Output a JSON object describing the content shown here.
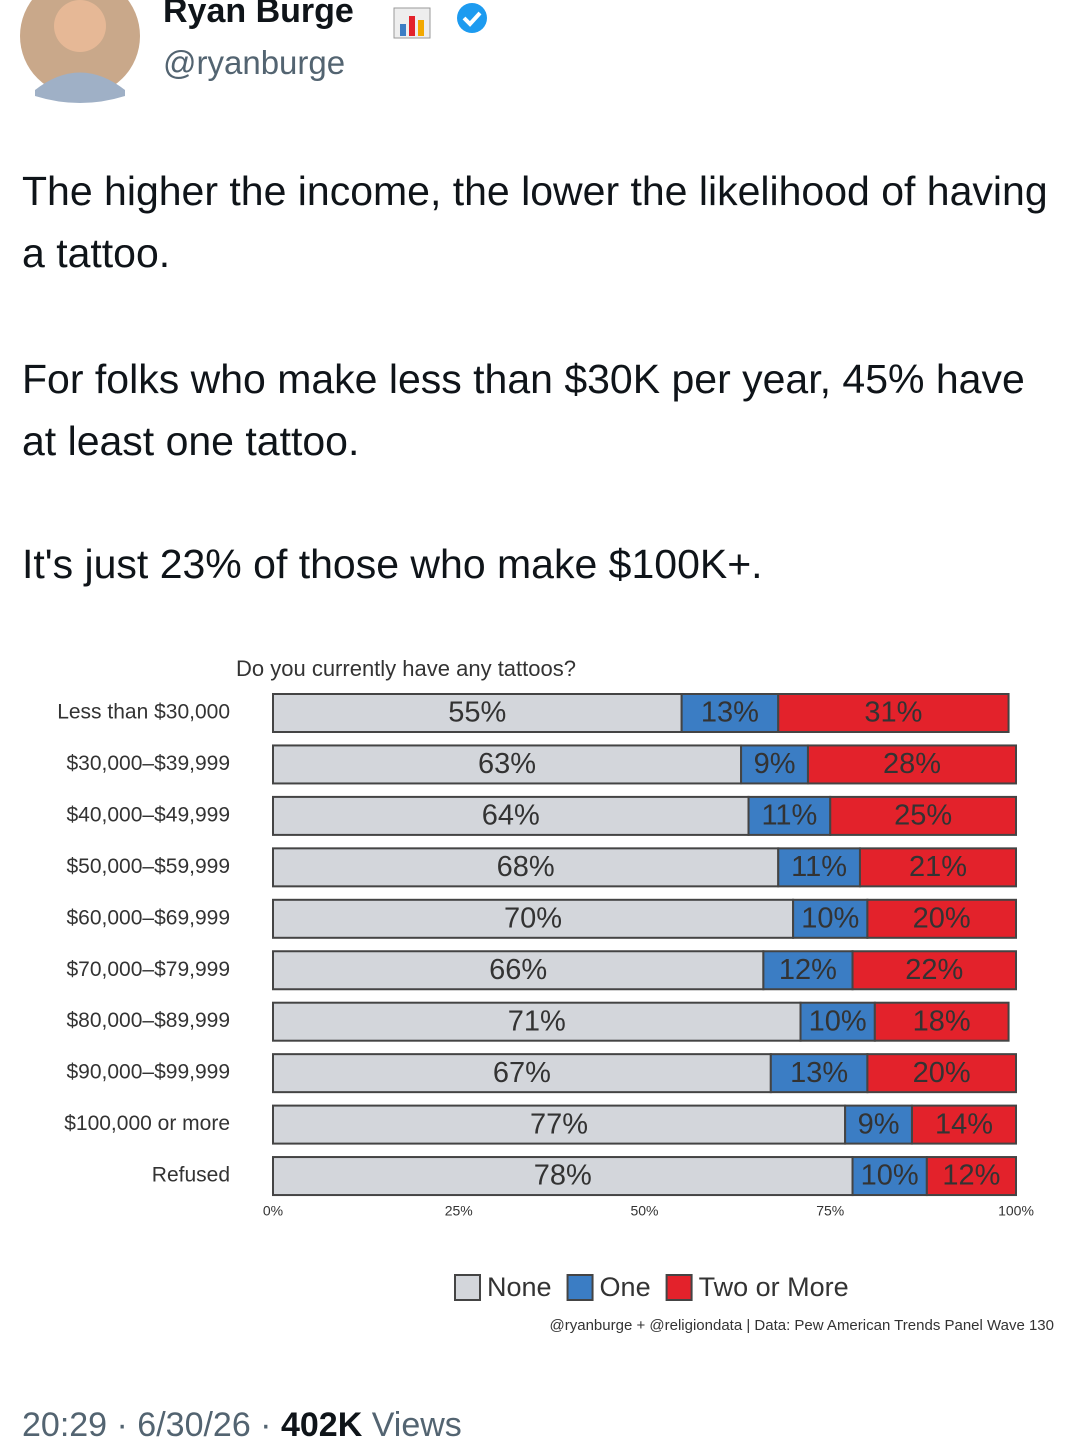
{
  "tweet": {
    "name": "Ryan Burge",
    "handle": "@ryanburge",
    "paragraphs": [
      "The higher the income, the lower the likelihood of having a tattoo.",
      "For folks who make less than $30K per year, 45% have at least one tattoo.",
      "It's just 23% of those who make $100K+."
    ],
    "meta": "20:29 · 6/30/26 ·",
    "views_count": "402K",
    "views_label": "Views"
  },
  "chart_data": {
    "type": "stacked_barh",
    "title": "Do you currently have any tattoos?",
    "categories": [
      "Less than $30,000",
      "$30,000–$39,999",
      "$40,000–$49,999",
      "$50,000–$59,999",
      "$60,000–$69,999",
      "$70,000–$79,999",
      "$80,000–$89,999",
      "$90,000–$99,999",
      "$100,000 or more",
      "Refused"
    ],
    "series": [
      {
        "name": "None",
        "color": "#d3d6db",
        "values": [
          55,
          63,
          64,
          68,
          70,
          66,
          71,
          67,
          77,
          78
        ],
        "value_labels": [
          "55%",
          "63%",
          "64%",
          "68%",
          "70%",
          "66%",
          "71%",
          "67%",
          "77%",
          "78%"
        ]
      },
      {
        "name": "One",
        "color": "#3b7dc4",
        "values": [
          13,
          9,
          11,
          11,
          10,
          12,
          10,
          13,
          9,
          10
        ],
        "value_labels": [
          "13%",
          "9%",
          "11%",
          "11%",
          "10%",
          "12%",
          "10%",
          "13%",
          "9%",
          "10%"
        ]
      },
      {
        "name": "Two or More",
        "color": "#e3222b",
        "values": [
          31,
          28,
          25,
          21,
          20,
          22,
          18,
          20,
          14,
          12
        ],
        "value_labels": [
          "31%",
          "28%",
          "25%",
          "21%",
          "20%",
          "22%",
          "18%",
          "20%",
          "14%",
          "12%"
        ]
      }
    ],
    "xlim": [
      0,
      100
    ],
    "xticks": [
      {
        "value": 0,
        "label": "0%"
      },
      {
        "value": 25,
        "label": "25%"
      },
      {
        "value": 50,
        "label": "50%"
      },
      {
        "value": 75,
        "label": "75%"
      },
      {
        "value": 100,
        "label": "100%"
      }
    ],
    "legend": "bottom",
    "caption": "@ryanburge + @religiondata | Data: Pew American Trends Panel Wave 130"
  }
}
